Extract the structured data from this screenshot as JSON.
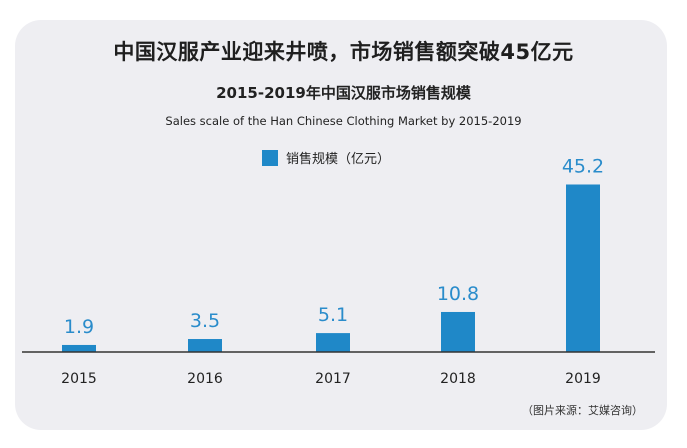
{
  "headline": "中国汉服产业迎来井喷，市场销售额突破45亿元",
  "chart_data": {
    "type": "bar",
    "title": "2015-2019年中国汉服市场销售规模",
    "subtitle": "Sales scale of the Han Chinese Clothing Market by 2015-2019",
    "categories": [
      "2015",
      "2016",
      "2017",
      "2018",
      "2019"
    ],
    "series": [
      {
        "name": "销售规模（亿元）",
        "values": [
          1.9,
          3.5,
          5.1,
          10.8,
          45.2
        ]
      }
    ],
    "data_labels": [
      "1.9",
      "3.5",
      "5.1",
      "10.8",
      "45.2"
    ],
    "ylim": [
      0,
      51
    ],
    "grid": false,
    "legend_position": "top-center",
    "xlabel": "",
    "ylabel": ""
  },
  "source": "（图片来源：艾媒咨询）",
  "colors": {
    "bar": "#1f88c8",
    "label": "#2a8ccb",
    "axis": "#333333",
    "card": "#eeeef2"
  }
}
